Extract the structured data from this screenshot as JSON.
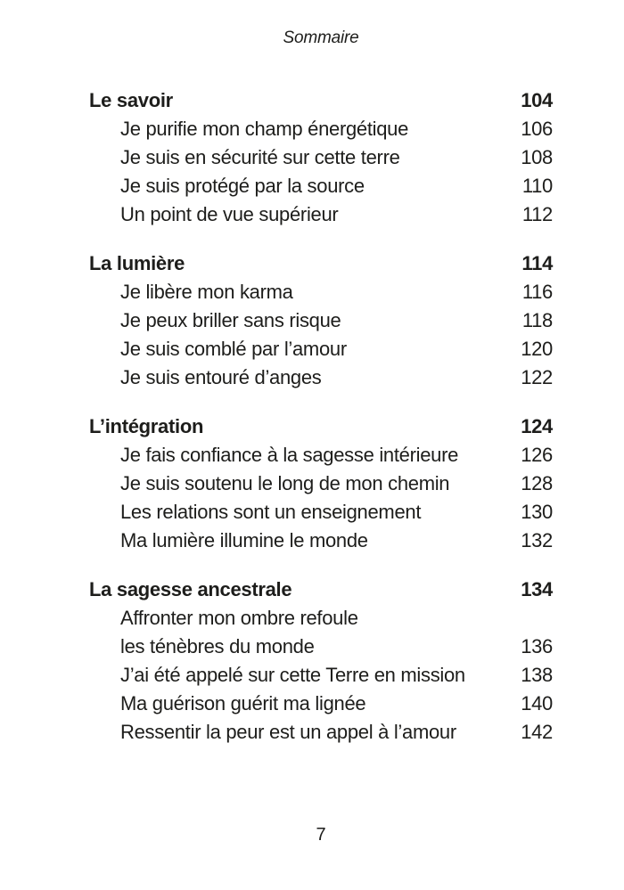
{
  "page": {
    "title": "Sommaire",
    "page_number": "7"
  },
  "colors": {
    "text": "#1d1d1b",
    "background": "#ffffff"
  },
  "toc": {
    "sections": [
      {
        "title": "Le savoir",
        "page": "104",
        "entries": [
          {
            "lines": [
              "Je purifie mon champ énergétique"
            ],
            "page": "106"
          },
          {
            "lines": [
              "Je suis en sécurité sur cette terre"
            ],
            "page": "108"
          },
          {
            "lines": [
              "Je suis protégé par la source"
            ],
            "page": "110"
          },
          {
            "lines": [
              "Un point de vue supérieur"
            ],
            "page": "112"
          }
        ]
      },
      {
        "title": "La lumière",
        "page": "114",
        "entries": [
          {
            "lines": [
              "Je libère mon karma"
            ],
            "page": "116"
          },
          {
            "lines": [
              "Je peux briller sans risque"
            ],
            "page": "118"
          },
          {
            "lines": [
              "Je suis comblé par l’amour"
            ],
            "page": "120"
          },
          {
            "lines": [
              "Je suis entouré d’anges"
            ],
            "page": "122"
          }
        ]
      },
      {
        "title": "L’intégration",
        "page": "124",
        "entries": [
          {
            "lines": [
              "Je fais confiance à la sagesse intérieure"
            ],
            "page": "126"
          },
          {
            "lines": [
              "Je suis soutenu le long de mon chemin"
            ],
            "page": "128"
          },
          {
            "lines": [
              "Les relations sont un enseignement"
            ],
            "page": "130"
          },
          {
            "lines": [
              "Ma lumière illumine le monde"
            ],
            "page": "132"
          }
        ]
      },
      {
        "title": "La sagesse ancestrale",
        "page": "134",
        "entries": [
          {
            "lines": [
              "Affronter mon ombre refoule",
              "les ténèbres du monde"
            ],
            "page": "136"
          },
          {
            "lines": [
              "J’ai été appelé sur cette Terre en mission"
            ],
            "page": "138"
          },
          {
            "lines": [
              "Ma guérison guérit ma lignée"
            ],
            "page": "140"
          },
          {
            "lines": [
              "Ressentir la peur est un appel à l’amour"
            ],
            "page": "142"
          }
        ]
      }
    ]
  }
}
